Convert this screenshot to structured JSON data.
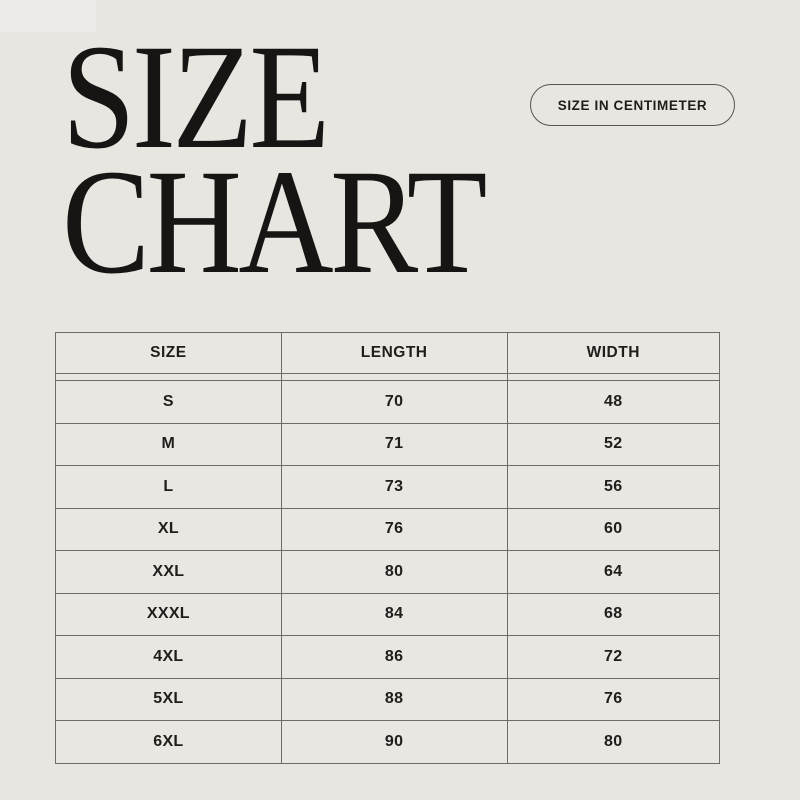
{
  "page": {
    "background_color": "#e8e6e1",
    "text_color": "#1f1e1c",
    "line_color": "#6f6d67"
  },
  "title": {
    "line1": "SIZE",
    "line2": "CHART"
  },
  "badge": {
    "label": "SIZE IN CENTIMETER"
  },
  "table": {
    "headers": {
      "size": "SIZE",
      "length": "LENGTH",
      "width": "WIDTH"
    },
    "rows": [
      {
        "size": "S",
        "length": 70,
        "width": 48
      },
      {
        "size": "M",
        "length": 71,
        "width": 52
      },
      {
        "size": "L",
        "length": 73,
        "width": 56
      },
      {
        "size": "XL",
        "length": 76,
        "width": 60
      },
      {
        "size": "XXL",
        "length": 80,
        "width": 64
      },
      {
        "size": "XXXL",
        "length": 84,
        "width": 68
      },
      {
        "size": "4XL",
        "length": 86,
        "width": 72
      },
      {
        "size": "5XL",
        "length": 88,
        "width": 76
      },
      {
        "size": "6XL",
        "length": 90,
        "width": 80
      }
    ]
  },
  "chart_data": {
    "type": "table",
    "title": "SIZE CHART",
    "unit_note": "SIZE IN CENTIMETER",
    "columns": [
      "SIZE",
      "LENGTH",
      "WIDTH"
    ],
    "rows": [
      [
        "S",
        70,
        48
      ],
      [
        "M",
        71,
        52
      ],
      [
        "L",
        73,
        56
      ],
      [
        "XL",
        76,
        60
      ],
      [
        "XXL",
        80,
        64
      ],
      [
        "XXXL",
        84,
        68
      ],
      [
        "4XL",
        86,
        72
      ],
      [
        "5XL",
        88,
        76
      ],
      [
        "6XL",
        90,
        80
      ]
    ]
  }
}
